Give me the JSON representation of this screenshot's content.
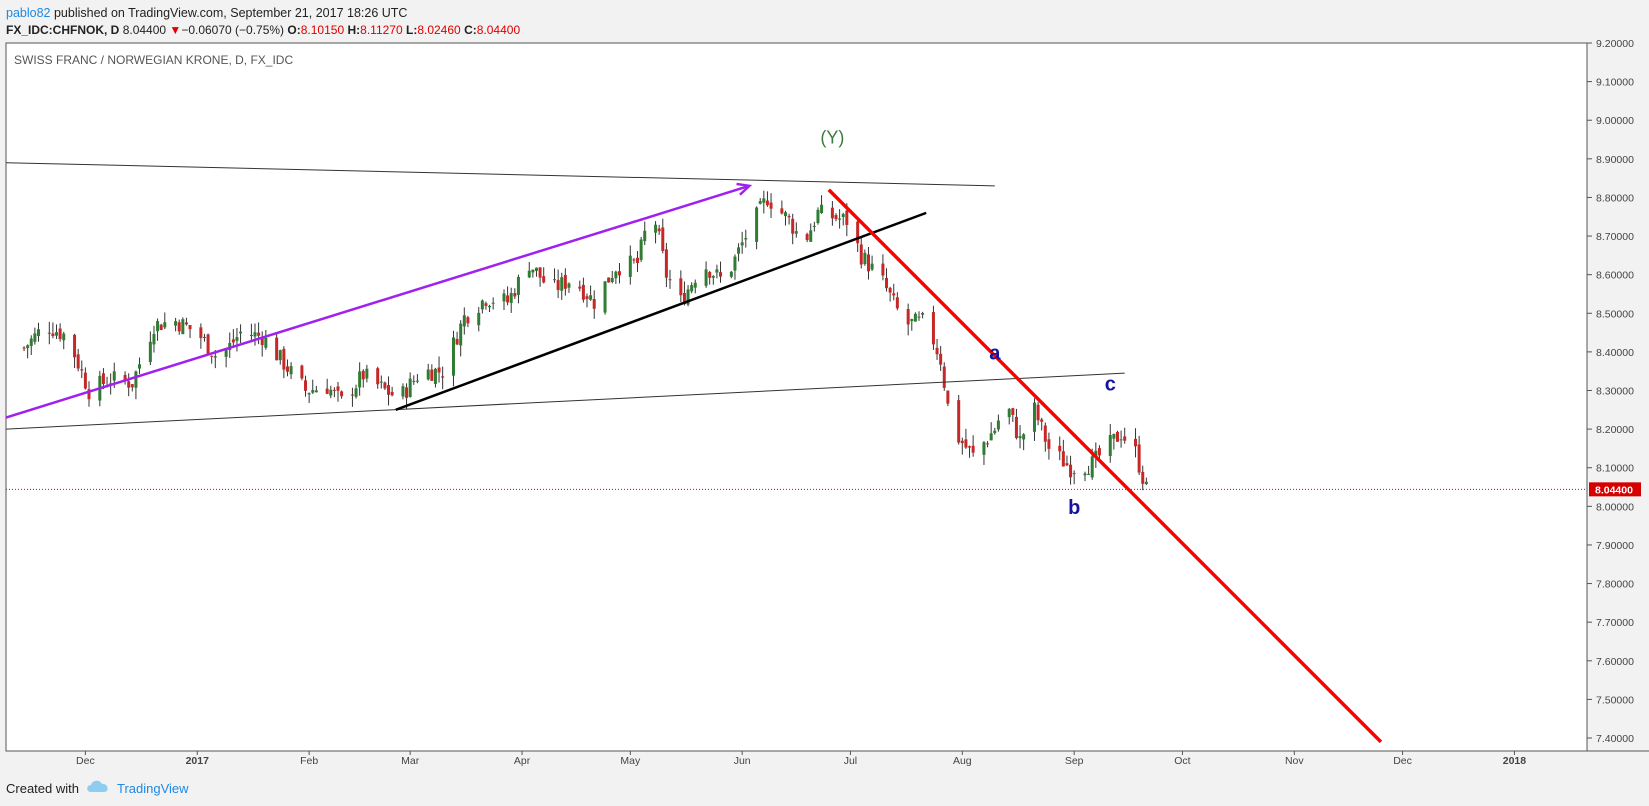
{
  "header": {
    "author": "pablo82",
    "published": " published on TradingView.com, September 21, 2017 18:26 UTC"
  },
  "quote": {
    "symbol": "FX_IDC:CHFNOK, D",
    "last": "8.04400",
    "arrow": "▼",
    "change": "−0.06070 (−0.75%)",
    "o_label": "O:",
    "o_val": "8.10150",
    "h_label": "H:",
    "h_val": "8.11270",
    "l_label": "L:",
    "l_val": "8.02460",
    "c_label": "C:",
    "c_val": "8.04400"
  },
  "footer": {
    "created": "Created with",
    "brand": "TradingView",
    "icon": "tradingview-cloud-icon"
  },
  "colors": {
    "up": "#2e7d32",
    "down": "#c62828",
    "purple": "#a020f0",
    "red_line": "#ff0000",
    "wave_label": "#1414a0",
    "y_label": "#3c7a3c",
    "price_badge": "#d50000"
  },
  "chart_data": {
    "type": "candlestick",
    "title": "SWISS FRANC / NORWEGIAN KRONE, D, FX_IDC",
    "y_ticks": [
      "9.20000",
      "9.10000",
      "9.00000",
      "8.90000",
      "8.80000",
      "8.70000",
      "8.60000",
      "8.50000",
      "8.40000",
      "8.30000",
      "8.20000",
      "8.10000",
      "8.00000",
      "7.90000",
      "7.80000",
      "7.70000",
      "7.60000",
      "7.50000",
      "7.40000"
    ],
    "ylim": [
      7.4,
      9.2
    ],
    "x_ticks": [
      "Dec",
      "2017",
      "Feb",
      "Mar",
      "Apr",
      "May",
      "Jun",
      "Jul",
      "Aug",
      "Sep",
      "Oct",
      "Nov",
      "Dec",
      "2018"
    ],
    "last_price_label": "8.04400",
    "last_price": 8.044,
    "close_path": [
      [
        "2016-11-14",
        8.41
      ],
      [
        "2016-11-20",
        8.47
      ],
      [
        "2016-11-26",
        8.44
      ],
      [
        "2016-12-02",
        8.3
      ],
      [
        "2016-12-08",
        8.33
      ],
      [
        "2016-12-14",
        8.32
      ],
      [
        "2016-12-20",
        8.47
      ],
      [
        "2016-12-26",
        8.48
      ],
      [
        "2017-01-01",
        8.45
      ],
      [
        "2017-01-07",
        8.38
      ],
      [
        "2017-01-13",
        8.45
      ],
      [
        "2017-01-19",
        8.44
      ],
      [
        "2017-01-25",
        8.37
      ],
      [
        "2017-01-31",
        8.3
      ],
      [
        "2017-02-06",
        8.31
      ],
      [
        "2017-02-10",
        8.27
      ],
      [
        "2017-02-16",
        8.34
      ],
      [
        "2017-02-22",
        8.3
      ],
      [
        "2017-02-26",
        8.28
      ],
      [
        "2017-03-04",
        8.35
      ],
      [
        "2017-03-10",
        8.35
      ],
      [
        "2017-03-16",
        8.49
      ],
      [
        "2017-03-22",
        8.54
      ],
      [
        "2017-03-28",
        8.53
      ],
      [
        "2017-04-03",
        8.63
      ],
      [
        "2017-04-09",
        8.56
      ],
      [
        "2017-04-15",
        8.59
      ],
      [
        "2017-04-21",
        8.53
      ],
      [
        "2017-04-27",
        8.62
      ],
      [
        "2017-05-03",
        8.63
      ],
      [
        "2017-05-07",
        8.78
      ],
      [
        "2017-05-11",
        8.6
      ],
      [
        "2017-05-15",
        8.53
      ],
      [
        "2017-05-21",
        8.63
      ],
      [
        "2017-05-27",
        8.58
      ],
      [
        "2017-06-02",
        8.7
      ],
      [
        "2017-06-08",
        8.8
      ],
      [
        "2017-06-14",
        8.74
      ],
      [
        "2017-06-18",
        8.68
      ],
      [
        "2017-06-22",
        8.76
      ],
      [
        "2017-06-26",
        8.75
      ],
      [
        "2017-06-30",
        8.74
      ],
      [
        "2017-07-04",
        8.65
      ],
      [
        "2017-07-10",
        8.58
      ],
      [
        "2017-07-16",
        8.47
      ],
      [
        "2017-07-22",
        8.48
      ],
      [
        "2017-07-26",
        8.38
      ],
      [
        "2017-07-29",
        8.2
      ],
      [
        "2017-08-04",
        8.13
      ],
      [
        "2017-08-10",
        8.2
      ],
      [
        "2017-08-13",
        8.27
      ],
      [
        "2017-08-17",
        8.17
      ],
      [
        "2017-08-21",
        8.25
      ],
      [
        "2017-08-25",
        8.15
      ],
      [
        "2017-08-31",
        8.1
      ],
      [
        "2017-09-06",
        8.11
      ],
      [
        "2017-09-10",
        8.15
      ],
      [
        "2017-09-14",
        8.19
      ],
      [
        "2017-09-18",
        8.14
      ],
      [
        "2017-09-21",
        8.044
      ]
    ],
    "annotations": [
      {
        "text": "(Y)",
        "x": "2017-06-26",
        "y": 8.94
      },
      {
        "text": "a",
        "x": "2017-08-10",
        "y": 8.38
      },
      {
        "text": "b",
        "x": "2017-09-01",
        "y": 7.98
      },
      {
        "text": "c",
        "x": "2017-09-11",
        "y": 8.3
      }
    ],
    "trendlines": [
      {
        "name": "upper-channel",
        "from": [
          "2016-11-09",
          8.89
        ],
        "to": [
          "2017-08-10",
          8.83
        ]
      },
      {
        "name": "lower-channel",
        "from": [
          "2016-11-09",
          8.2
        ],
        "to": [
          "2017-09-15",
          8.345
        ]
      },
      {
        "name": "purple-arrow",
        "from": [
          "2016-11-09",
          8.23
        ],
        "to": [
          "2017-06-03",
          8.83
        ]
      },
      {
        "name": "black-support",
        "from": [
          "2017-02-25",
          8.25
        ],
        "to": [
          "2017-07-22",
          8.76
        ]
      },
      {
        "name": "red-downtrend",
        "from": [
          "2017-06-25",
          8.82
        ],
        "to": [
          "2017-11-25",
          7.39
        ]
      }
    ]
  }
}
